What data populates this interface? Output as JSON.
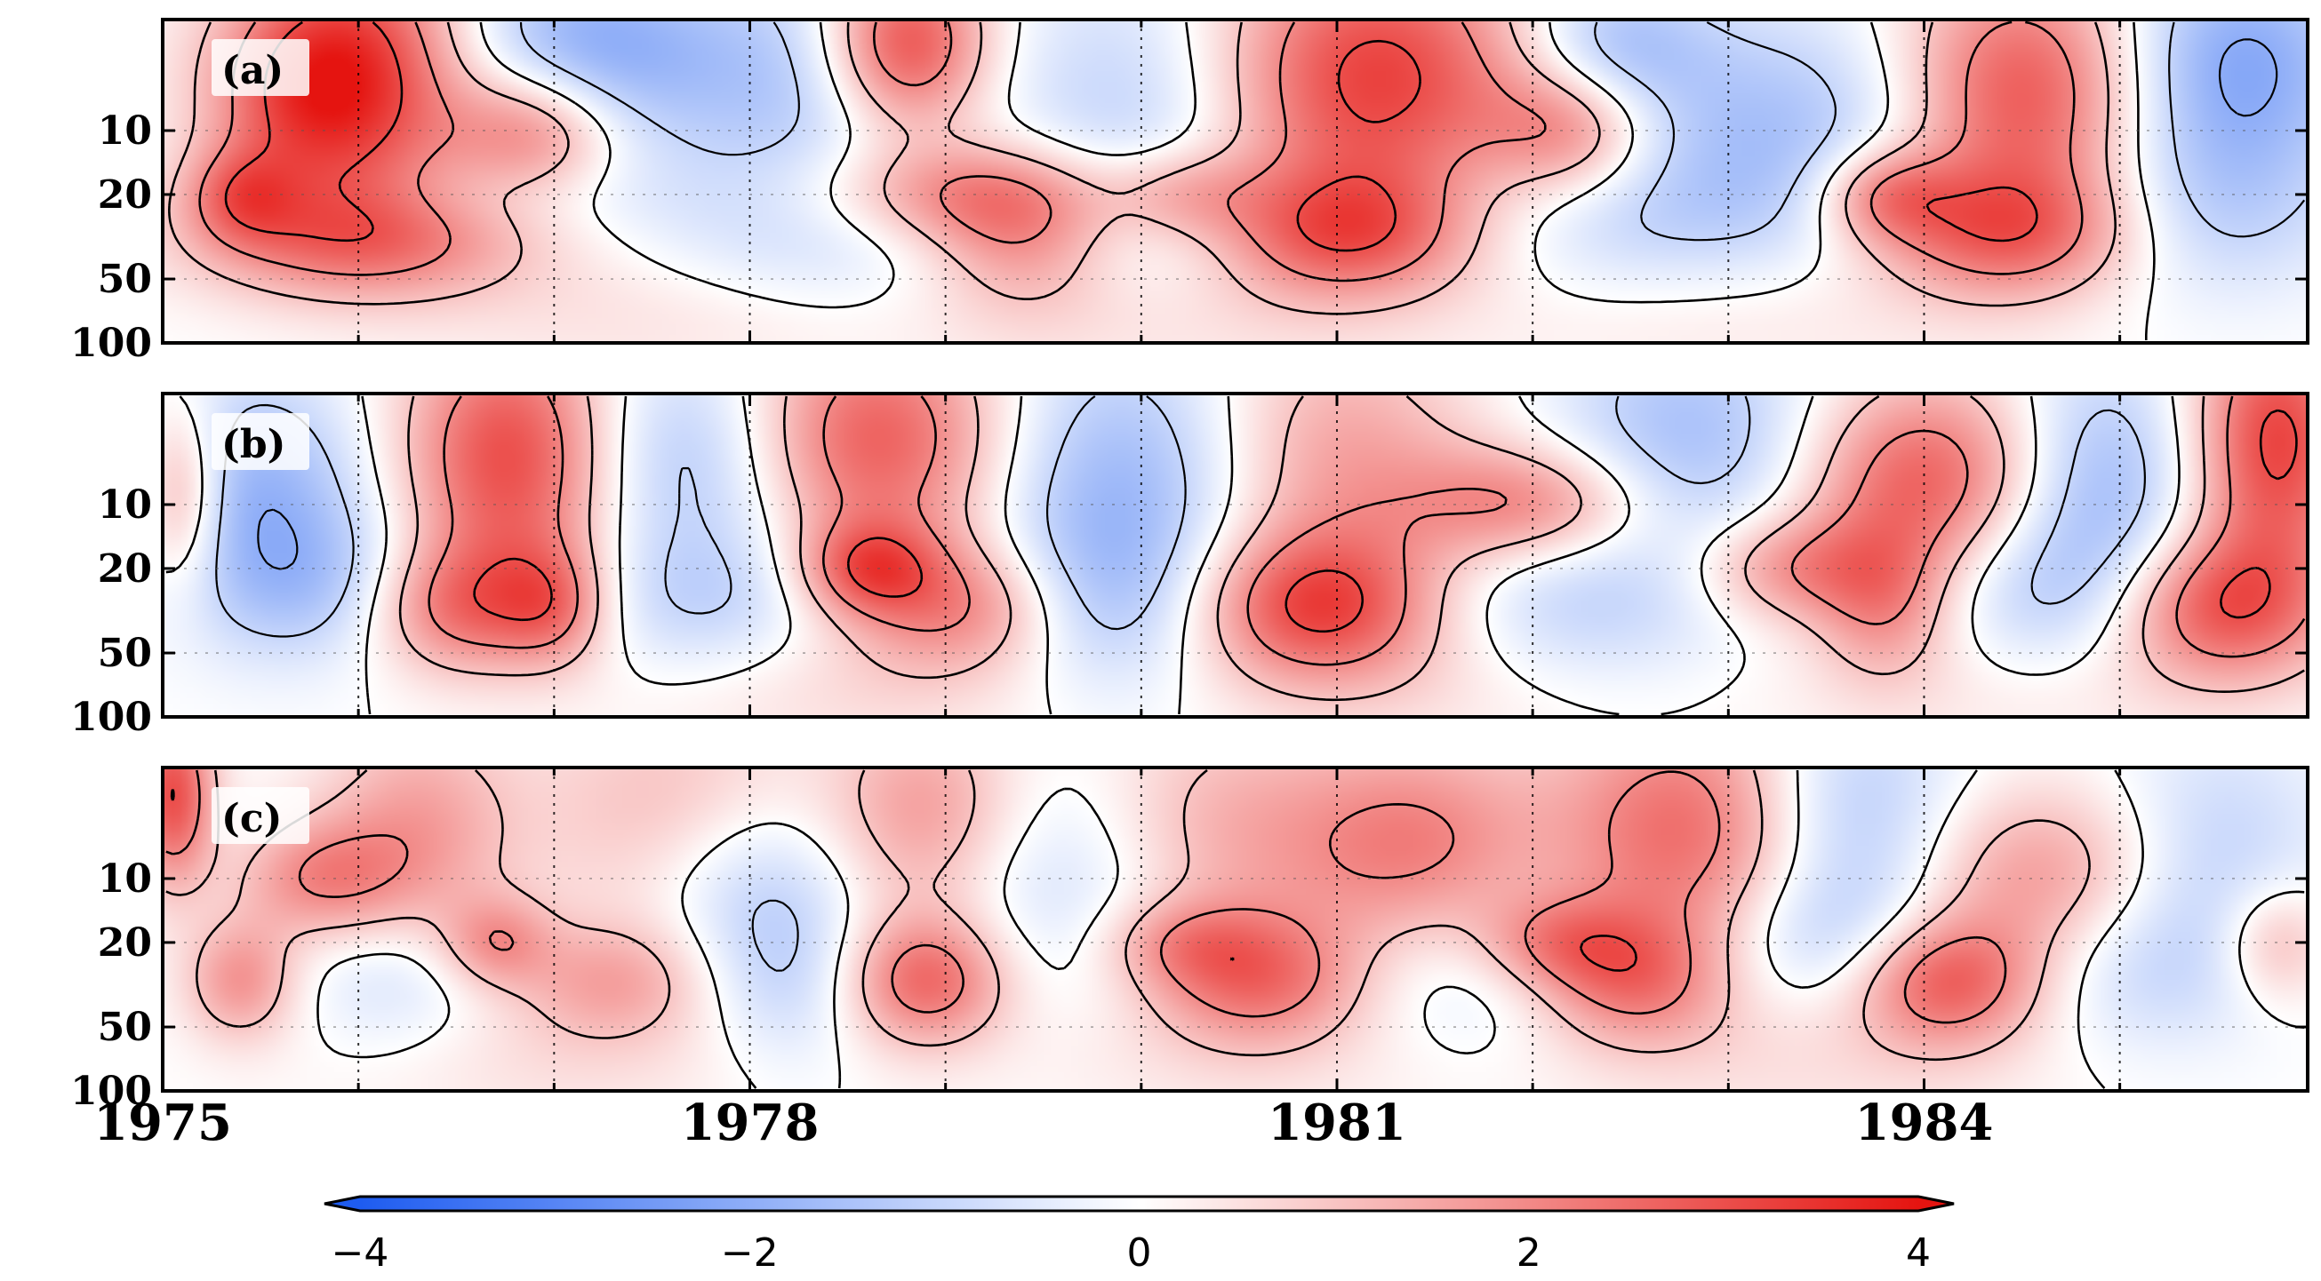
{
  "chart_data": {
    "type": "heatmap",
    "title": "",
    "xlabel": "",
    "ylabel": "",
    "x_range": [
      1975,
      1985.96
    ],
    "xticks": [
      {
        "value": 1975,
        "label": "1975"
      },
      {
        "value": 1978,
        "label": "1978"
      },
      {
        "value": 1981,
        "label": "1981"
      },
      {
        "value": 1984,
        "label": "1984"
      }
    ],
    "x_minor_ticks": [
      1976,
      1977,
      1979,
      1980,
      1982,
      1983,
      1985
    ],
    "y_scale": "log",
    "y_inverted": true,
    "y_range": [
      3,
      100
    ],
    "yticks": [
      {
        "value": 10,
        "label": "10"
      },
      {
        "value": 20,
        "label": "20"
      },
      {
        "value": 50,
        "label": "50"
      },
      {
        "value": 100,
        "label": "100"
      }
    ],
    "panels": [
      {
        "label": "(a)",
        "features": [
          {
            "x": 1976.0,
            "y": 5,
            "sx": 0.45,
            "sy": 0.45,
            "a": 3.2
          },
          {
            "x": 1976.9,
            "y": 10,
            "sx": 0.3,
            "sy": 0.22,
            "a": 2.1
          },
          {
            "x": 1975.4,
            "y": 20,
            "sx": 0.2,
            "sy": 0.16,
            "a": 1.6
          },
          {
            "x": 1976.0,
            "y": 30,
            "sx": 0.6,
            "sy": 0.22,
            "a": 2.5
          },
          {
            "x": 1975.7,
            "y": 7,
            "sx": 0.35,
            "sy": 0.3,
            "a": 1.4
          },
          {
            "x": 1977.1,
            "y": 4,
            "sx": 0.5,
            "sy": 0.3,
            "a": -2.0
          },
          {
            "x": 1976.5,
            "y": 20,
            "sx": 0.6,
            "sy": 0.15,
            "a": -0.8
          },
          {
            "x": 1978.3,
            "y": 6,
            "sx": 0.6,
            "sy": 0.4,
            "a": -1.4
          },
          {
            "x": 1978.4,
            "y": 30,
            "sx": 0.7,
            "sy": 0.25,
            "a": -0.9
          },
          {
            "x": 1978.8,
            "y": 4,
            "sx": 0.3,
            "sy": 0.3,
            "a": 3.6
          },
          {
            "x": 1979.0,
            "y": 20,
            "sx": 0.55,
            "sy": 0.18,
            "a": 2.0
          },
          {
            "x": 1979.4,
            "y": 30,
            "sx": 0.35,
            "sy": 0.25,
            "a": 1.8
          },
          {
            "x": 1980.0,
            "y": 8,
            "sx": 0.45,
            "sy": 0.5,
            "a": -1.2
          },
          {
            "x": 1980.2,
            "y": 20,
            "sx": 0.3,
            "sy": 0.16,
            "a": 1.6
          },
          {
            "x": 1980.3,
            "y": 30,
            "sx": 0.5,
            "sy": 0.25,
            "a": -0.7
          },
          {
            "x": 1981.2,
            "y": 6,
            "sx": 0.6,
            "sy": 0.5,
            "a": 3.3
          },
          {
            "x": 1981.0,
            "y": 30,
            "sx": 0.5,
            "sy": 0.22,
            "a": 2.8
          },
          {
            "x": 1982.2,
            "y": 10,
            "sx": 0.3,
            "sy": 0.22,
            "a": 2.0
          },
          {
            "x": 1982.4,
            "y": 4,
            "sx": 0.35,
            "sy": 0.25,
            "a": -1.6
          },
          {
            "x": 1982.5,
            "y": 25,
            "sx": 1.1,
            "sy": 0.3,
            "a": -1.2
          },
          {
            "x": 1983.3,
            "y": 8,
            "sx": 0.6,
            "sy": 0.35,
            "a": -1.3
          },
          {
            "x": 1983.8,
            "y": 20,
            "sx": 0.25,
            "sy": 0.16,
            "a": 2.0
          },
          {
            "x": 1984.4,
            "y": 30,
            "sx": 0.5,
            "sy": 0.22,
            "a": 2.4
          },
          {
            "x": 1984.5,
            "y": 7,
            "sx": 0.45,
            "sy": 0.45,
            "a": 3.0
          },
          {
            "x": 1985.6,
            "y": 5,
            "sx": 0.45,
            "sy": 0.4,
            "a": -2.2
          },
          {
            "x": 1985.4,
            "y": 25,
            "sx": 0.5,
            "sy": 0.3,
            "a": -1.0
          },
          {
            "x": 1977.5,
            "y": 70,
            "sx": 0.8,
            "sy": 0.25,
            "a": 0.5
          },
          {
            "x": 1980.0,
            "y": 70,
            "sx": 0.8,
            "sy": 0.25,
            "a": 0.6
          },
          {
            "x": 1983.0,
            "y": 70,
            "sx": 1.0,
            "sy": 0.25,
            "a": 0.5
          }
        ]
      },
      {
        "label": "(b)",
        "features": [
          {
            "x": 1975.5,
            "y": 9,
            "sx": 0.4,
            "sy": 0.4,
            "a": -1.8
          },
          {
            "x": 1975.1,
            "y": 9,
            "sx": 0.15,
            "sy": 0.3,
            "a": 1.8
          },
          {
            "x": 1976.8,
            "y": 6,
            "sx": 0.4,
            "sy": 0.45,
            "a": 3.3
          },
          {
            "x": 1976.5,
            "y": 30,
            "sx": 0.35,
            "sy": 0.22,
            "a": 2.4
          },
          {
            "x": 1977.0,
            "y": 30,
            "sx": 0.2,
            "sy": 0.2,
            "a": 1.6
          },
          {
            "x": 1975.9,
            "y": 25,
            "sx": 0.45,
            "sy": 0.25,
            "a": -1.2
          },
          {
            "x": 1977.7,
            "y": 6,
            "sx": 0.5,
            "sy": 0.4,
            "a": -1.8
          },
          {
            "x": 1977.8,
            "y": 30,
            "sx": 0.5,
            "sy": 0.25,
            "a": -1.0
          },
          {
            "x": 1978.6,
            "y": 5,
            "sx": 0.5,
            "sy": 0.4,
            "a": 3.0
          },
          {
            "x": 1978.6,
            "y": 20,
            "sx": 0.25,
            "sy": 0.16,
            "a": 2.2
          },
          {
            "x": 1979.1,
            "y": 30,
            "sx": 0.4,
            "sy": 0.22,
            "a": 2.0
          },
          {
            "x": 1979.9,
            "y": 8,
            "sx": 0.5,
            "sy": 0.5,
            "a": -1.8
          },
          {
            "x": 1979.8,
            "y": 30,
            "sx": 0.4,
            "sy": 0.3,
            "a": -1.0
          },
          {
            "x": 1980.9,
            "y": 30,
            "sx": 0.45,
            "sy": 0.25,
            "a": 3.0
          },
          {
            "x": 1981.0,
            "y": 6,
            "sx": 0.5,
            "sy": 0.45,
            "a": 1.6
          },
          {
            "x": 1982.0,
            "y": 10,
            "sx": 0.45,
            "sy": 0.2,
            "a": 2.2
          },
          {
            "x": 1982.2,
            "y": 30,
            "sx": 0.6,
            "sy": 0.3,
            "a": -1.1
          },
          {
            "x": 1982.8,
            "y": 5,
            "sx": 0.5,
            "sy": 0.4,
            "a": -1.6
          },
          {
            "x": 1983.3,
            "y": 20,
            "sx": 0.35,
            "sy": 0.18,
            "a": 1.8
          },
          {
            "x": 1983.8,
            "y": 30,
            "sx": 0.25,
            "sy": 0.25,
            "a": 1.6
          },
          {
            "x": 1984.0,
            "y": 8,
            "sx": 0.45,
            "sy": 0.35,
            "a": 2.8
          },
          {
            "x": 1984.6,
            "y": 25,
            "sx": 0.5,
            "sy": 0.3,
            "a": -1.4
          },
          {
            "x": 1984.9,
            "y": 7,
            "sx": 0.35,
            "sy": 0.4,
            "a": -1.6
          },
          {
            "x": 1985.5,
            "y": 30,
            "sx": 0.4,
            "sy": 0.25,
            "a": 2.8
          },
          {
            "x": 1985.8,
            "y": 5,
            "sx": 0.3,
            "sy": 0.45,
            "a": 3.2
          },
          {
            "x": 1978.5,
            "y": 70,
            "sx": 0.8,
            "sy": 0.25,
            "a": 0.6
          },
          {
            "x": 1981.5,
            "y": 70,
            "sx": 0.8,
            "sy": 0.25,
            "a": 0.5
          },
          {
            "x": 1984.5,
            "y": 70,
            "sx": 0.9,
            "sy": 0.25,
            "a": 0.5
          }
        ]
      },
      {
        "label": "(c)",
        "features": [
          {
            "x": 1975.05,
            "y": 4,
            "sx": 0.15,
            "sy": 0.3,
            "a": 3.0
          },
          {
            "x": 1975.8,
            "y": 10,
            "sx": 0.3,
            "sy": 0.2,
            "a": 1.8
          },
          {
            "x": 1975.4,
            "y": 30,
            "sx": 0.2,
            "sy": 0.2,
            "a": 1.8
          },
          {
            "x": 1976.3,
            "y": 6,
            "sx": 0.35,
            "sy": 0.4,
            "a": 1.6
          },
          {
            "x": 1976.7,
            "y": 20,
            "sx": 0.2,
            "sy": 0.15,
            "a": 1.6
          },
          {
            "x": 1976.2,
            "y": 30,
            "sx": 0.35,
            "sy": 0.25,
            "a": -0.9
          },
          {
            "x": 1977.3,
            "y": 30,
            "sx": 0.35,
            "sy": 0.2,
            "a": 1.4
          },
          {
            "x": 1977.6,
            "y": 5,
            "sx": 0.5,
            "sy": 0.4,
            "a": 1.2
          },
          {
            "x": 1978.0,
            "y": 10,
            "sx": 0.4,
            "sy": 0.3,
            "a": -1.2
          },
          {
            "x": 1978.2,
            "y": 30,
            "sx": 0.3,
            "sy": 0.3,
            "a": -1.0
          },
          {
            "x": 1978.9,
            "y": 5,
            "sx": 0.35,
            "sy": 0.35,
            "a": 1.8
          },
          {
            "x": 1978.9,
            "y": 30,
            "sx": 0.3,
            "sy": 0.22,
            "a": 2.6
          },
          {
            "x": 1979.6,
            "y": 10,
            "sx": 0.5,
            "sy": 0.4,
            "a": -1.0
          },
          {
            "x": 1980.4,
            "y": 6,
            "sx": 0.5,
            "sy": 0.4,
            "a": 1.4
          },
          {
            "x": 1980.6,
            "y": 30,
            "sx": 0.4,
            "sy": 0.22,
            "a": 2.2
          },
          {
            "x": 1980.2,
            "y": 20,
            "sx": 0.3,
            "sy": 0.15,
            "a": 1.2
          },
          {
            "x": 1981.4,
            "y": 8,
            "sx": 0.45,
            "sy": 0.4,
            "a": 2.2
          },
          {
            "x": 1981.6,
            "y": 25,
            "sx": 0.5,
            "sy": 0.3,
            "a": -1.2
          },
          {
            "x": 1982.1,
            "y": 20,
            "sx": 0.3,
            "sy": 0.16,
            "a": 1.6
          },
          {
            "x": 1982.5,
            "y": 30,
            "sx": 0.35,
            "sy": 0.22,
            "a": 2.0
          },
          {
            "x": 1982.8,
            "y": 6,
            "sx": 0.5,
            "sy": 0.45,
            "a": 2.6
          },
          {
            "x": 1983.5,
            "y": 20,
            "sx": 0.45,
            "sy": 0.25,
            "a": -1.2
          },
          {
            "x": 1983.6,
            "y": 5,
            "sx": 0.4,
            "sy": 0.4,
            "a": -1.6
          },
          {
            "x": 1984.1,
            "y": 30,
            "sx": 0.35,
            "sy": 0.22,
            "a": 2.8
          },
          {
            "x": 1984.6,
            "y": 10,
            "sx": 0.45,
            "sy": 0.3,
            "a": 1.8
          },
          {
            "x": 1985.1,
            "y": 25,
            "sx": 0.45,
            "sy": 0.3,
            "a": -1.0
          },
          {
            "x": 1985.8,
            "y": 20,
            "sx": 0.2,
            "sy": 0.2,
            "a": 1.4
          },
          {
            "x": 1985.5,
            "y": 7,
            "sx": 0.4,
            "sy": 0.4,
            "a": -1.0
          },
          {
            "x": 1977.0,
            "y": 70,
            "sx": 0.8,
            "sy": 0.25,
            "a": 0.5
          },
          {
            "x": 1980.5,
            "y": 70,
            "sx": 0.9,
            "sy": 0.25,
            "a": 0.4
          },
          {
            "x": 1983.5,
            "y": 70,
            "sx": 0.9,
            "sy": 0.25,
            "a": 0.5
          }
        ]
      }
    ],
    "contour_levels": [
      -2,
      -1,
      0,
      1,
      2,
      3
    ],
    "colorbar": {
      "range": [
        -4,
        4
      ],
      "colors": {
        "negative": "#1e5cf0",
        "mid": "#ffffff",
        "positive": "#e51410"
      },
      "ticks": [
        {
          "value": -4,
          "label": "−4"
        },
        {
          "value": -2,
          "label": "−2"
        },
        {
          "value": 0,
          "label": "0"
        },
        {
          "value": 2,
          "label": "2"
        },
        {
          "value": 4,
          "label": "4"
        }
      ]
    }
  }
}
